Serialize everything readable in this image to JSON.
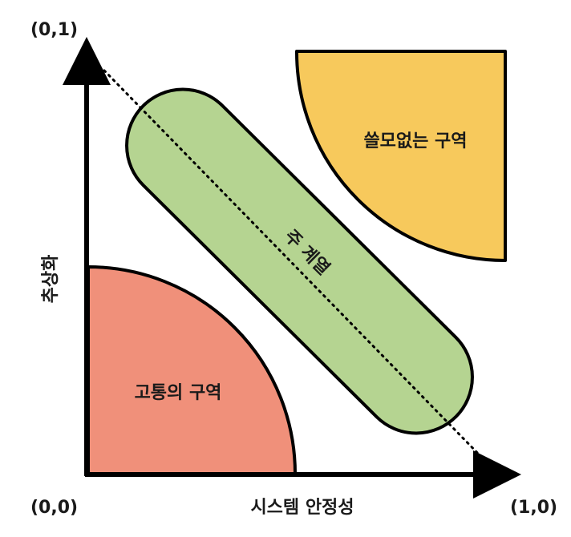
{
  "diagram": {
    "corners": {
      "origin": "(0,0)",
      "top": "(0,1)",
      "right": "(1,0)"
    },
    "axes": {
      "x_label": "시스템 안정성",
      "y_label": "추상화"
    },
    "zones": {
      "pain": {
        "label": "고통의 구역",
        "color": "#F0907A"
      },
      "useless": {
        "label": "쓸모없는 구역",
        "color": "#F7C95C"
      },
      "main_sequence": {
        "label": "주 계열",
        "color": "#B5D491"
      }
    },
    "colors": {
      "axis": "#000000",
      "outline": "#000000"
    }
  }
}
